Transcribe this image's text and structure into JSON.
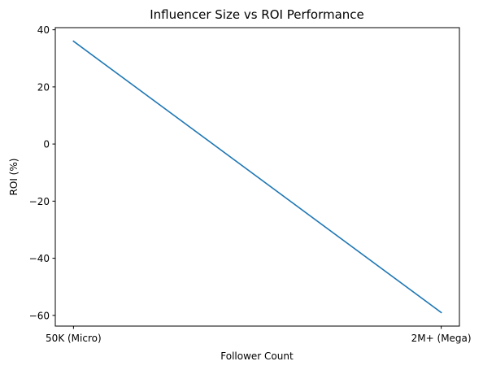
{
  "chart_data": {
    "type": "line",
    "title": "Influencer Size vs ROI Performance",
    "xlabel": "Follower Count",
    "ylabel": "ROI (%)",
    "categories": [
      "50K (Micro)",
      "2M+ (Mega)"
    ],
    "series": [
      {
        "values": [
          36,
          -59
        ],
        "color": "#1f77b4"
      }
    ],
    "ylim": [
      -63.75,
      40.75
    ],
    "yticks": [
      40,
      20,
      0,
      -20,
      -40,
      -60
    ],
    "ytick_labels": [
      "40",
      "20",
      "0",
      "−20",
      "−40",
      "−60"
    ],
    "grid": false,
    "legend": "none"
  }
}
